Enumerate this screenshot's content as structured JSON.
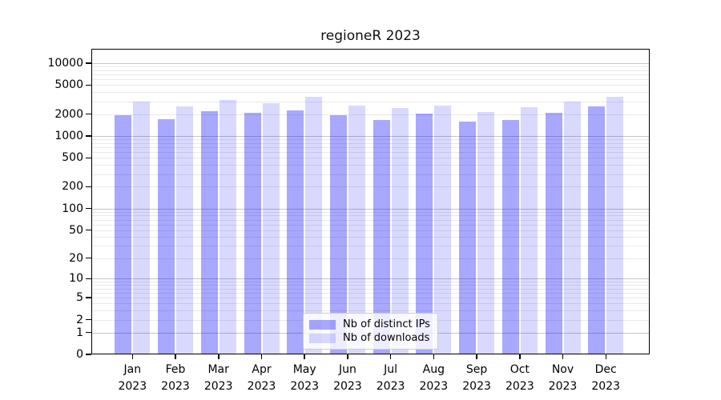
{
  "chart_data": {
    "type": "bar",
    "title": "regioneR 2023",
    "x_tick_labels": [
      [
        "Jan",
        "2023"
      ],
      [
        "Feb",
        "2023"
      ],
      [
        "Mar",
        "2023"
      ],
      [
        "Apr",
        "2023"
      ],
      [
        "May",
        "2023"
      ],
      [
        "Jun",
        "2023"
      ],
      [
        "Jul",
        "2023"
      ],
      [
        "Aug",
        "2023"
      ],
      [
        "Sep",
        "2023"
      ],
      [
        "Oct",
        "2023"
      ],
      [
        "Nov",
        "2023"
      ],
      [
        "Dec",
        "2023"
      ]
    ],
    "series": [
      {
        "name": "Nb of distinct IPs",
        "color": "rgba(0,0,255,0.34)",
        "values": [
          1910,
          1710,
          2210,
          2110,
          2250,
          1930,
          1670,
          2030,
          1560,
          1670,
          2110,
          2550
        ]
      },
      {
        "name": "Nb of downloads",
        "color": "rgba(0,0,255,0.15)",
        "values": [
          2940,
          2570,
          3090,
          2840,
          3420,
          2590,
          2440,
          2650,
          2150,
          2490,
          2970,
          3480
        ]
      }
    ],
    "y_axis": {
      "scale": "log10(value+1)",
      "tick_values": [
        0,
        1,
        2,
        5,
        10,
        20,
        50,
        100,
        200,
        500,
        1000,
        2000,
        5000,
        10000
      ],
      "top_value": 16000
    },
    "grid": true,
    "legend_position": "lower center"
  }
}
